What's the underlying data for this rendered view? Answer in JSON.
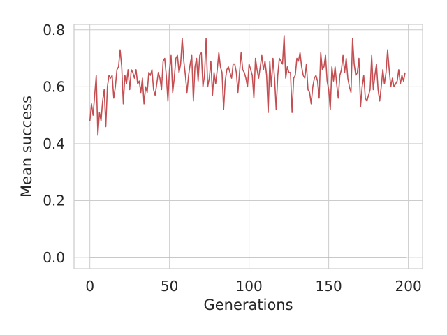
{
  "chart_data": {
    "type": "line",
    "xlabel": "Generations",
    "ylabel": "Mean success",
    "xlim": [
      -9.95,
      208.95
    ],
    "ylim": [
      -0.039,
      0.819
    ],
    "xticks": [
      0,
      50,
      100,
      150,
      200
    ],
    "xtick_labels": [
      "0",
      "50",
      "100",
      "150",
      "200"
    ],
    "yticks": [
      0.0,
      0.2,
      0.4,
      0.6,
      0.8
    ],
    "ytick_labels": [
      "0.0",
      "0.2",
      "0.4",
      "0.6",
      "0.8"
    ],
    "grid": true,
    "colors": {
      "series_red": "#c44e52",
      "series_gold": "#ccb974",
      "grid": "#cccccc",
      "frame": "#cccccc"
    },
    "series": [
      {
        "color": "#c44e52",
        "x_start": 0,
        "x_step": 1,
        "values": [
          0.48,
          0.54,
          0.5,
          0.57,
          0.64,
          0.43,
          0.51,
          0.48,
          0.55,
          0.59,
          0.46,
          0.6,
          0.64,
          0.63,
          0.64,
          0.56,
          0.6,
          0.66,
          0.67,
          0.73,
          0.67,
          0.54,
          0.64,
          0.61,
          0.66,
          0.59,
          0.66,
          0.65,
          0.63,
          0.66,
          0.61,
          0.62,
          0.58,
          0.63,
          0.54,
          0.6,
          0.58,
          0.65,
          0.64,
          0.66,
          0.59,
          0.57,
          0.61,
          0.65,
          0.63,
          0.59,
          0.69,
          0.7,
          0.64,
          0.55,
          0.66,
          0.71,
          0.58,
          0.63,
          0.7,
          0.71,
          0.65,
          0.68,
          0.77,
          0.69,
          0.64,
          0.58,
          0.64,
          0.68,
          0.71,
          0.55,
          0.67,
          0.7,
          0.62,
          0.71,
          0.72,
          0.6,
          0.64,
          0.77,
          0.6,
          0.63,
          0.69,
          0.57,
          0.65,
          0.61,
          0.66,
          0.72,
          0.67,
          0.65,
          0.52,
          0.62,
          0.66,
          0.67,
          0.65,
          0.63,
          0.68,
          0.68,
          0.65,
          0.58,
          0.65,
          0.72,
          0.66,
          0.65,
          0.63,
          0.6,
          0.68,
          0.66,
          0.64,
          0.56,
          0.7,
          0.66,
          0.63,
          0.67,
          0.71,
          0.66,
          0.69,
          0.64,
          0.51,
          0.69,
          0.6,
          0.7,
          0.63,
          0.52,
          0.64,
          0.7,
          0.69,
          0.68,
          0.78,
          0.63,
          0.67,
          0.65,
          0.65,
          0.51,
          0.63,
          0.64,
          0.7,
          0.69,
          0.72,
          0.67,
          0.64,
          0.63,
          0.68,
          0.59,
          0.58,
          0.54,
          0.6,
          0.63,
          0.64,
          0.62,
          0.56,
          0.72,
          0.66,
          0.67,
          0.71,
          0.62,
          0.59,
          0.52,
          0.67,
          0.62,
          0.67,
          0.61,
          0.56,
          0.64,
          0.66,
          0.71,
          0.65,
          0.7,
          0.63,
          0.6,
          0.58,
          0.77,
          0.68,
          0.64,
          0.65,
          0.7,
          0.53,
          0.6,
          0.64,
          0.56,
          0.55,
          0.57,
          0.59,
          0.71,
          0.59,
          0.64,
          0.68,
          0.59,
          0.55,
          0.6,
          0.66,
          0.61,
          0.65,
          0.73,
          0.66,
          0.6,
          0.63,
          0.6,
          0.61,
          0.62,
          0.66,
          0.61,
          0.64,
          0.62,
          0.65
        ]
      },
      {
        "color": "#ccb974",
        "x_start": 0,
        "x_step": 199,
        "values": [
          0.0,
          0.0
        ]
      }
    ]
  }
}
